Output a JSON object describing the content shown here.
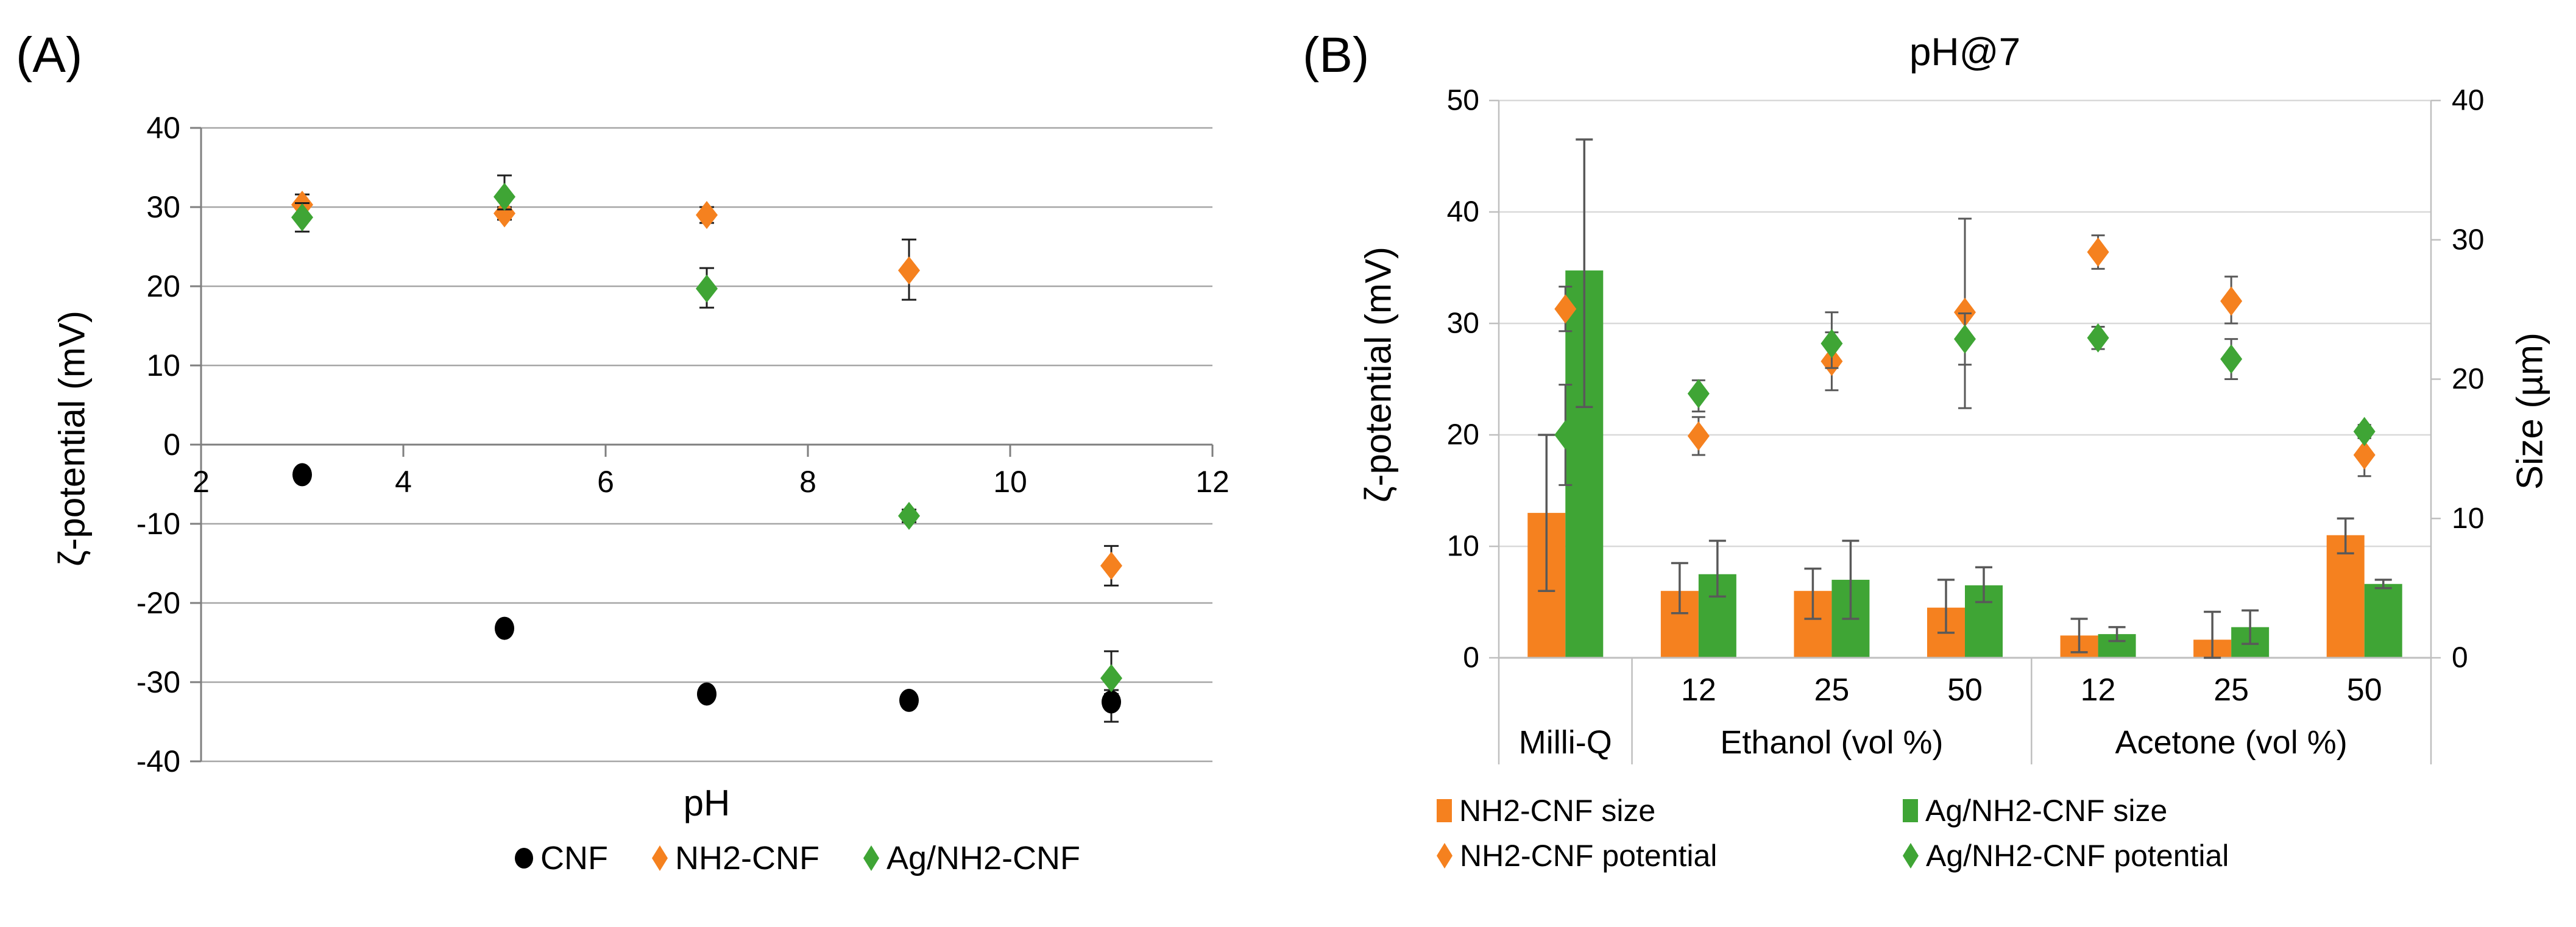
{
  "figure": {
    "panel_a": {
      "label": "(A)"
    },
    "panel_b": {
      "label": "(B)",
      "title": "pH@7"
    }
  },
  "chart_data": [
    {
      "panel": "A",
      "type": "scatter",
      "title": "",
      "xlabel": "pH",
      "ylabel": "ζ-potential (mV)",
      "xlim": [
        2,
        12
      ],
      "xticks": [
        2,
        4,
        6,
        8,
        10,
        12
      ],
      "ylim": [
        -40,
        40
      ],
      "yticks": [
        40,
        30,
        20,
        10,
        0,
        -10,
        -20,
        -30,
        -40
      ],
      "grid": true,
      "legend_position": "bottom",
      "legend": [
        {
          "name": "CNF",
          "marker": "circle",
          "color": "#000000"
        },
        {
          "name": "NH2-CNF",
          "marker": "diamond",
          "color": "#F5811F"
        },
        {
          "name": "Ag/NH2-CNF",
          "marker": "diamond",
          "color": "#3FA535"
        }
      ],
      "series": [
        {
          "name": "CNF",
          "marker": "circle",
          "color": "#000000",
          "x": [
            3,
            5,
            7,
            9,
            11
          ],
          "y": [
            -3.8,
            -23.2,
            -31.5,
            -32.3,
            -32.5
          ],
          "err_lo": [
            0.5,
            0.5,
            0.5,
            0.5,
            2.5
          ],
          "err_hi": [
            0.5,
            0.5,
            0.5,
            0.5,
            1.0
          ]
        },
        {
          "name": "NH2-CNF",
          "marker": "diamond",
          "color": "#F5811F",
          "x": [
            3,
            5,
            7,
            9,
            11
          ],
          "y": [
            30.3,
            29.2,
            29.0,
            22.0,
            -15.3
          ],
          "err_lo": [
            1.3,
            0.8,
            1.0,
            3.7,
            2.5
          ],
          "err_hi": [
            1.3,
            0.8,
            1.0,
            3.9,
            2.5
          ]
        },
        {
          "name": "Ag/NH2-CNF",
          "marker": "diamond",
          "color": "#3FA535",
          "x": [
            3,
            5,
            7,
            9,
            11
          ],
          "y": [
            28.7,
            31.3,
            19.7,
            -9.0,
            -29.5
          ],
          "err_lo": [
            1.8,
            1.6,
            2.4,
            0.8,
            1.5
          ],
          "err_hi": [
            1.8,
            2.7,
            2.6,
            0.8,
            3.4
          ]
        }
      ]
    },
    {
      "panel": "B",
      "type": "bar+scatter",
      "title": "pH@7",
      "ylabel_left": "ζ-potential (mV)",
      "ylabel_right": "Size (µm)",
      "ylim_left": [
        0,
        50
      ],
      "yticks_left": [
        0,
        10,
        20,
        30,
        40,
        50
      ],
      "ylim_right": [
        0,
        40
      ],
      "yticks_right": [
        0,
        10,
        20,
        30,
        40
      ],
      "grid": true,
      "categories": [
        "Milli-Q",
        "12",
        "25",
        "50",
        "12",
        "25",
        "50"
      ],
      "group_labels": [
        {
          "label": "Milli-Q",
          "span": [
            0,
            0
          ]
        },
        {
          "label": "Ethanol (vol %)",
          "span": [
            1,
            3
          ]
        },
        {
          "label": "Acetone (vol %)",
          "span": [
            4,
            6
          ]
        }
      ],
      "bar_series": [
        {
          "name": "NH2-CNF size",
          "color": "#F5811F",
          "axis": "right",
          "unit": "µm",
          "values": [
            10.4,
            4.8,
            4.8,
            3.6,
            1.6,
            1.3,
            8.8
          ],
          "err_lo": [
            5.6,
            1.6,
            2.0,
            1.8,
            1.2,
            1.3,
            1.3
          ],
          "err_hi": [
            5.6,
            2.0,
            1.6,
            2.0,
            1.2,
            2.0,
            1.2
          ]
        },
        {
          "name": "Ag/NH2-CNF size",
          "color": "#3FA535",
          "axis": "right",
          "unit": "µm",
          "values": [
            27.8,
            6.0,
            5.6,
            5.2,
            1.7,
            2.2,
            5.3
          ],
          "err_lo": [
            9.8,
            1.6,
            2.8,
            1.2,
            0.5,
            1.2,
            0.3
          ],
          "err_hi": [
            9.4,
            2.4,
            2.8,
            1.3,
            0.5,
            1.2,
            0.3
          ]
        }
      ],
      "point_series": [
        {
          "name": "NH2-CNF potential",
          "color": "#F5811F",
          "axis": "left",
          "unit": "mV",
          "values": [
            31.3,
            19.9,
            26.6,
            31.0,
            36.4,
            32.0,
            18.2
          ],
          "err_lo": [
            2.0,
            1.7,
            2.6,
            8.6,
            1.5,
            2.0,
            1.9
          ],
          "err_hi": [
            2.0,
            1.7,
            2.6,
            8.4,
            1.5,
            2.2,
            1.5
          ]
        },
        {
          "name": "Ag/NH2-CNF potential",
          "color": "#3FA535",
          "axis": "left",
          "unit": "mV",
          "values": [
            20.0,
            23.7,
            28.2,
            28.6,
            28.7,
            26.8,
            20.3
          ],
          "err_lo": [
            4.5,
            1.6,
            2.2,
            2.3,
            1.0,
            1.8,
            0.6
          ],
          "err_hi": [
            4.5,
            1.2,
            2.8,
            2.3,
            1.0,
            1.8,
            0.6
          ]
        }
      ],
      "legend": [
        {
          "name": "NH2-CNF size",
          "marker": "square",
          "color": "#F5811F"
        },
        {
          "name": "Ag/NH2-CNF size",
          "marker": "square",
          "color": "#3FA535"
        },
        {
          "name": "NH2-CNF potential",
          "marker": "diamond",
          "color": "#F5811F"
        },
        {
          "name": "Ag/NH2-CNF potential",
          "marker": "diamond",
          "color": "#3FA535"
        }
      ]
    }
  ],
  "colors": {
    "orange": "#F5811F",
    "green": "#3FA535",
    "black": "#000000",
    "grid_a": "#A6A6A6",
    "axis_a": "#7F7F7F",
    "error_a": "#1F1F1F",
    "grid_b": "#D9D9D9",
    "axis_b": "#BFBFBF",
    "error_b": "#595959"
  }
}
